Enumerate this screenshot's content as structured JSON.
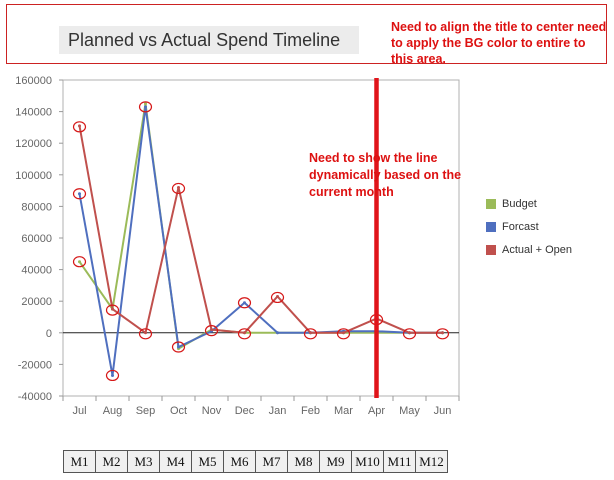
{
  "title_frame": {
    "title": "Planned vs Actual Spend Timeline",
    "annotation": "Need to align the title to center need to apply the BG color to entire to this area."
  },
  "chart_data": {
    "type": "line",
    "categories": [
      "Jul",
      "Aug",
      "Sep",
      "Oct",
      "Nov",
      "Dec",
      "Jan",
      "Feb",
      "Mar",
      "Apr",
      "May",
      "Jun"
    ],
    "series": [
      {
        "name": "Budget",
        "color": "#9bbb59",
        "values": [
          45000,
          15000,
          145000,
          -10000,
          2000,
          0,
          0,
          0,
          0,
          0,
          0,
          0
        ]
      },
      {
        "name": "Forcast",
        "color": "#4f6fbf",
        "values": [
          88000,
          -27000,
          143000,
          -9000,
          1000,
          19000,
          0,
          0,
          1000,
          1000,
          0,
          0
        ]
      },
      {
        "name": "Actual + Open",
        "color": "#c0504d",
        "values": [
          131000,
          15000,
          0,
          92000,
          2000,
          0,
          23000,
          0,
          0,
          9000,
          0,
          0
        ]
      }
    ],
    "ylim": [
      -40000,
      160000
    ],
    "yticks": [
      -40000,
      -20000,
      0,
      20000,
      40000,
      60000,
      80000,
      100000,
      120000,
      140000,
      160000
    ],
    "ytick_labels": [
      "-40000",
      "-20000",
      "0",
      "20000",
      "40000",
      "60000",
      "80000",
      "100000",
      "120000",
      "140000",
      "160000"
    ],
    "grid": false,
    "legend_position": "right",
    "current_month_marker": "Apr",
    "marker_color": "#e0141a",
    "annotation": "Need to show the line dynamically based on the current month"
  },
  "month_codes": [
    "M1",
    "M2",
    "M3",
    "M4",
    "M5",
    "M6",
    "M7",
    "M8",
    "M9",
    "M10",
    "M11",
    "M12"
  ]
}
